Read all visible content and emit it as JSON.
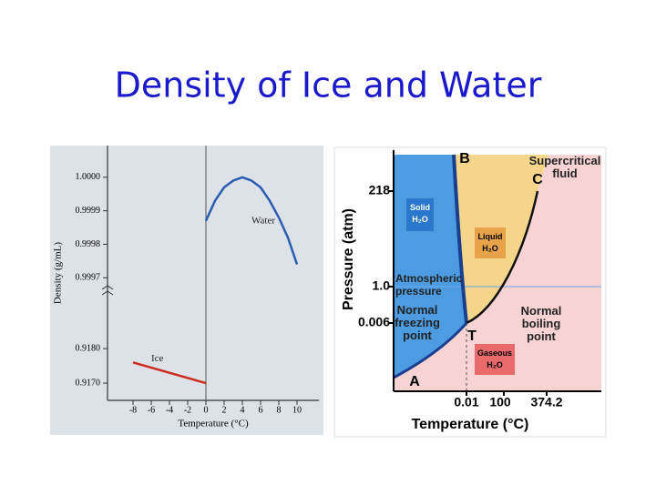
{
  "title": "Density of Ice and Water",
  "chart_data": [
    {
      "type": "line",
      "y_label": "Density (g/mL)",
      "x_label": "Temperature (°C)",
      "xlim": [
        -10,
        12
      ],
      "xticks": [
        -8,
        -6,
        -4,
        -2,
        0,
        2,
        4,
        6,
        8,
        10
      ],
      "y_segments": [
        {
          "ylim": [
            0.9165,
            0.9194
          ],
          "yticks": [
            {
              "value": 0.917,
              "label": "0.9170"
            },
            {
              "value": 0.918,
              "label": "0.9180"
            }
          ]
        },
        {
          "ylim": [
            0.99966,
            1.0001
          ],
          "yticks": [
            {
              "value": 0.9997,
              "label": "0.9997"
            },
            {
              "value": 0.9998,
              "label": "0.9998"
            },
            {
              "value": 0.9999,
              "label": "0.9999"
            },
            {
              "value": 1.0,
              "label": "1.0000"
            }
          ]
        }
      ],
      "series": [
        {
          "name": "Water",
          "color": "#2a5db0",
          "x": [
            0,
            1,
            2,
            3,
            4,
            5,
            6,
            7,
            8,
            9,
            10
          ],
          "values": [
            0.99987,
            0.99993,
            0.99997,
            0.99999,
            1.0,
            0.99999,
            0.99997,
            0.99993,
            0.99988,
            0.99982,
            0.99974
          ]
        },
        {
          "name": "Ice",
          "color": "#cc2a1e",
          "x": [
            -8,
            0
          ],
          "values": [
            0.9176,
            0.917
          ]
        }
      ]
    },
    {
      "type": "phase-diagram",
      "y_label": "Pressure (atm)",
      "x_label": "Temperature (°C)",
      "yticks": [
        218,
        {
          "value": 1.0,
          "label": "1.0"
        },
        0.006
      ],
      "xticks": [
        0.01,
        100,
        374.2
      ],
      "points": [
        "A",
        "B",
        "C",
        "T"
      ],
      "regions": [
        {
          "lines": [
            "Solid",
            "H₂O"
          ]
        },
        {
          "lines": [
            "Liquid",
            "H₂O"
          ]
        },
        {
          "lines": [
            "Gaseous",
            "H₂O"
          ]
        },
        {
          "lines": [
            "Supercritical",
            "fluid"
          ]
        }
      ],
      "annotations": [
        {
          "lines": [
            "Atmospheric",
            "pressure"
          ]
        },
        {
          "lines": [
            "Normal",
            "freezing",
            "point"
          ]
        },
        {
          "lines": [
            "Normal",
            "boiling",
            "point"
          ]
        }
      ]
    }
  ]
}
